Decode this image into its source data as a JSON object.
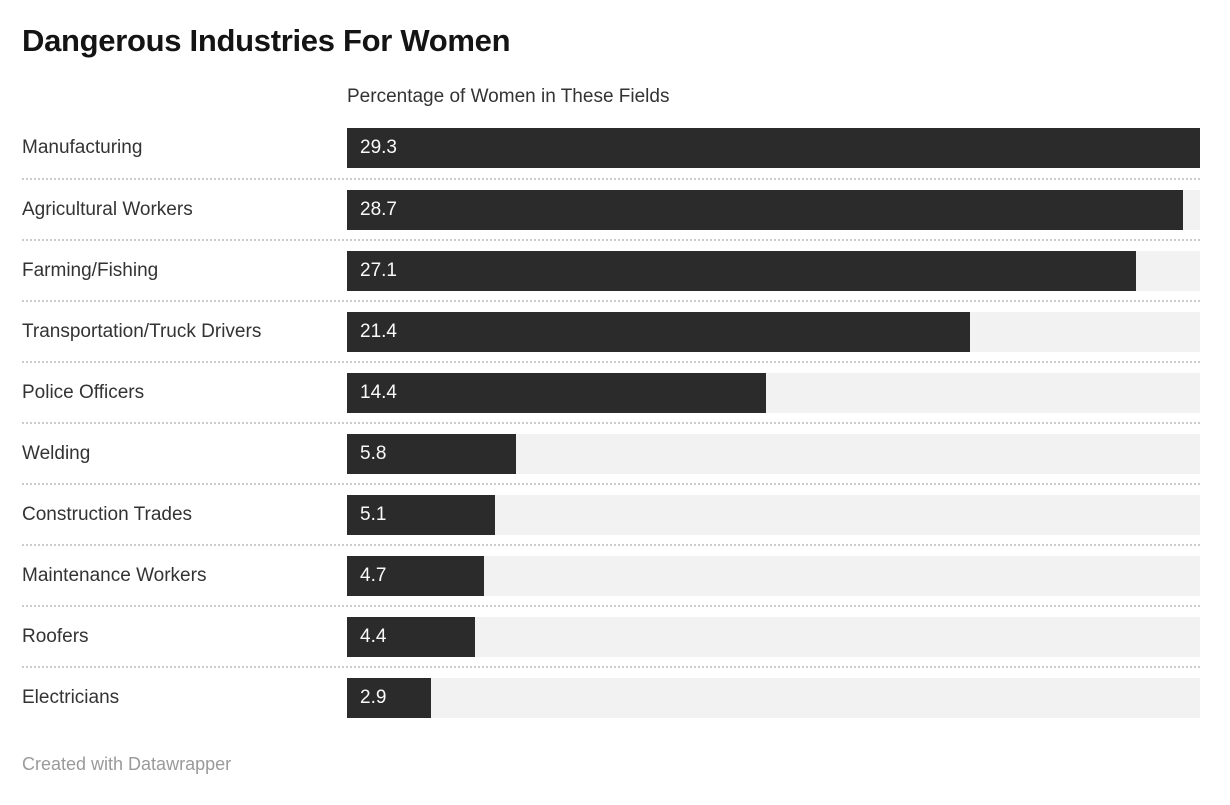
{
  "chart": {
    "title": "Dangerous Industries For Women",
    "axis_label": "Percentage of Women in These Fields",
    "footer_credit": "Created with Datawrapper"
  },
  "chart_data": {
    "type": "bar",
    "orientation": "horizontal",
    "title": "Dangerous Industries For Women",
    "xlabel": "Percentage of Women in These Fields",
    "ylabel": "",
    "categories": [
      "Manufacturing",
      "Agricultural Workers",
      "Farming/Fishing",
      "Transportation/Truck Drivers",
      "Police Officers",
      "Welding",
      "Construction Trades",
      "Maintenance Workers",
      "Roofers",
      "Electricians"
    ],
    "values": [
      29.3,
      28.7,
      27.1,
      21.4,
      14.4,
      5.8,
      5.1,
      4.7,
      4.4,
      2.9
    ],
    "xlim": [
      0,
      29.3
    ],
    "grid": false,
    "legend": false,
    "value_label_position": "inside-start",
    "colors": {
      "bar": "#2b2b2b",
      "track": "#f2f2f2",
      "value_label": "#fafafa",
      "category_label": "#333333",
      "title": "#141414",
      "divider": "#cccccc",
      "footer": "#9a9a9a",
      "background": "#ffffff"
    }
  }
}
